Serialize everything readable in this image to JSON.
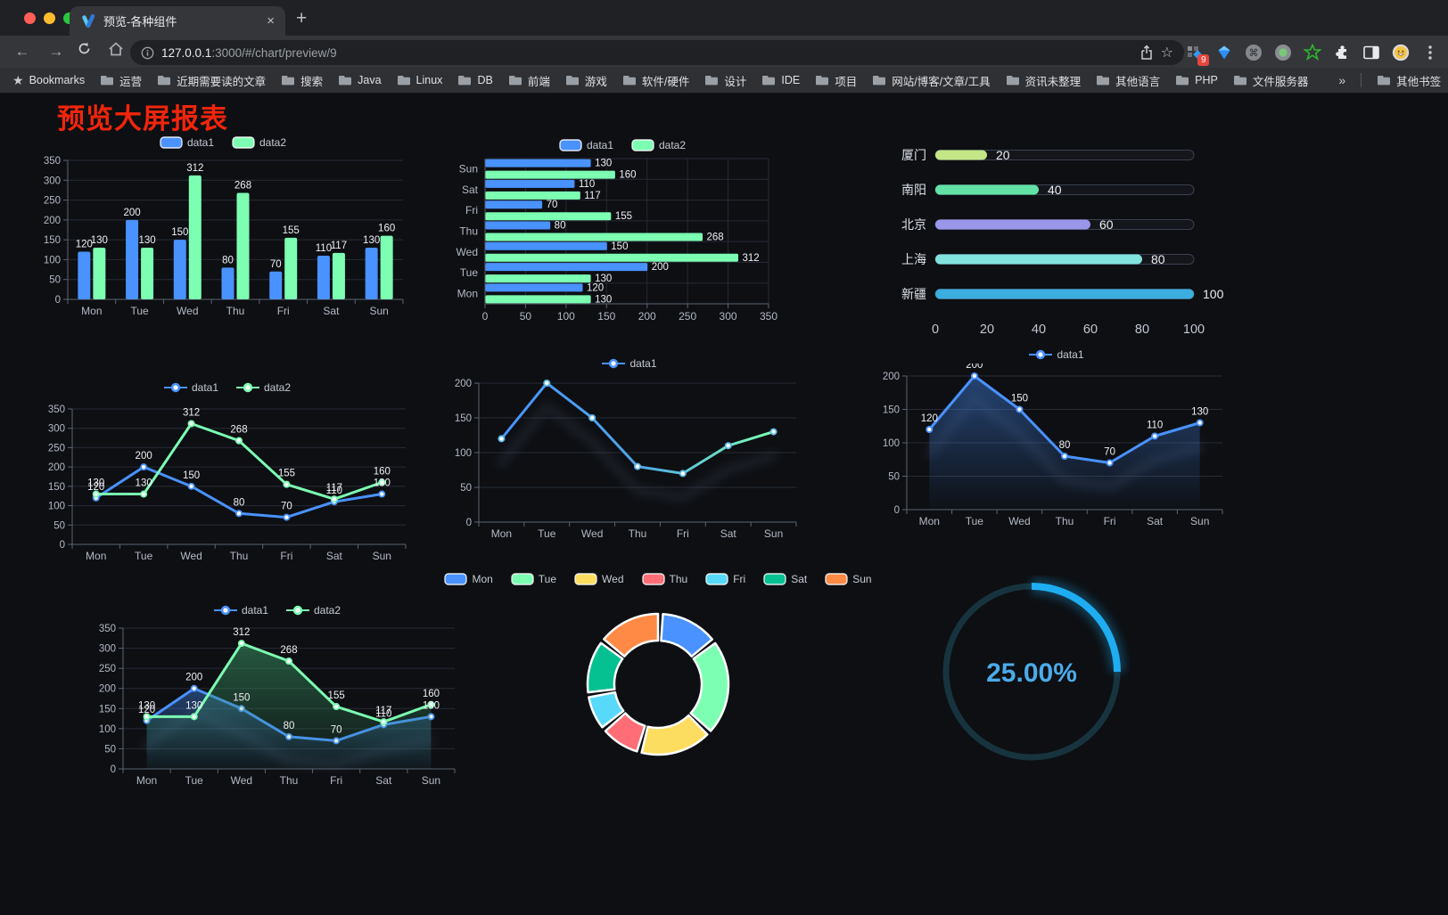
{
  "browser": {
    "tab": {
      "title": "预览-各种组件",
      "close_icon": "×",
      "new_tab_icon": "+"
    },
    "toolbar": {
      "url_host": "127.0.0.1",
      "url_rest": ":3000/#/chart/preview/9",
      "extension_badge": "9"
    },
    "bookmarks_bar": {
      "label": "Bookmarks",
      "items": [
        "运营",
        "近期需要读的文章",
        "搜索",
        "Java",
        "Linux",
        "DB",
        "前端",
        "游戏",
        "软件/硬件",
        "设计",
        "IDE",
        "项目",
        "网站/博客/文章/工具",
        "资讯未整理",
        "其他语言",
        "PHP",
        "文件服务器"
      ],
      "overflow": "»",
      "other": "其他书签"
    }
  },
  "page": {
    "title": "预览大屏报表"
  },
  "colors": {
    "data1_blue": "#4992ff",
    "data2_green": "#7cffb2",
    "traffic_red": "#ff5f57",
    "traffic_yellow": "#febc2e",
    "traffic_green": "#28c840",
    "title_red": "#f1250b",
    "gauge_progress": "#1fadf2"
  },
  "chart_data": [
    {
      "type": "bar",
      "legend_marker": "pill",
      "categories": [
        "Mon",
        "Tue",
        "Wed",
        "Thu",
        "Fri",
        "Sat",
        "Sun"
      ],
      "series": [
        {
          "name": "data1",
          "color": "#4992ff",
          "values": [
            120,
            200,
            150,
            80,
            70,
            110,
            130
          ]
        },
        {
          "name": "data2",
          "color": "#7cffb2",
          "values": [
            130,
            130,
            312,
            268,
            155,
            117,
            160
          ]
        }
      ],
      "ylim": [
        0,
        350
      ],
      "yticks": [
        0,
        50,
        100,
        150,
        200,
        250,
        300,
        350
      ],
      "margins": {
        "l": 36,
        "r": 8,
        "t": 10,
        "b": 22
      }
    },
    {
      "type": "hbar",
      "legend_marker": "pill",
      "categories": [
        "Mon",
        "Tue",
        "Wed",
        "Thu",
        "Fri",
        "Sat",
        "Sun"
      ],
      "series": [
        {
          "name": "data1",
          "color": "#4992ff",
          "values": [
            120,
            200,
            150,
            80,
            70,
            110,
            130
          ]
        },
        {
          "name": "data2",
          "color": "#7cffb2",
          "values": [
            130,
            130,
            312,
            268,
            155,
            117,
            160
          ]
        }
      ],
      "xlim": [
        0,
        350
      ],
      "xticks": [
        0,
        50,
        100,
        150,
        200,
        250,
        300,
        350
      ],
      "margins": {
        "l": 46,
        "r": 36,
        "t": 5,
        "b": 24
      }
    },
    {
      "type": "progress",
      "rows": [
        {
          "label": "厦门",
          "value": 20,
          "color": "#c4e687"
        },
        {
          "label": "南阳",
          "value": 40,
          "color": "#62e2a6"
        },
        {
          "label": "北京",
          "value": 60,
          "color": "#9a96e9"
        },
        {
          "label": "上海",
          "value": 80,
          "color": "#81e2de"
        },
        {
          "label": "新疆",
          "value": 100,
          "color": "#3badde"
        }
      ],
      "xlim": [
        0,
        100
      ],
      "xticks": [
        0,
        20,
        40,
        60,
        80,
        100
      ]
    },
    {
      "type": "line",
      "legend_marker": "dot",
      "categories": [
        "Mon",
        "Tue",
        "Wed",
        "Thu",
        "Fri",
        "Sat",
        "Sun"
      ],
      "series": [
        {
          "name": "data1",
          "color": "#4992ff",
          "values": [
            120,
            200,
            150,
            80,
            70,
            110,
            130
          ],
          "labels": true
        },
        {
          "name": "data2",
          "color": "#7cffb2",
          "values": [
            130,
            130,
            312,
            268,
            155,
            117,
            160
          ],
          "labels": true
        }
      ],
      "ylim": [
        0,
        350
      ],
      "yticks": [
        0,
        50,
        100,
        150,
        200,
        250,
        300,
        350
      ],
      "margins": {
        "l": 36,
        "r": 10,
        "t": 14,
        "b": 26
      }
    },
    {
      "type": "line",
      "legend_marker": "dot",
      "categories": [
        "Mon",
        "Tue",
        "Wed",
        "Thu",
        "Fri",
        "Sat",
        "Sun"
      ],
      "series": [
        {
          "name": "data1",
          "gradient": [
            "#4992ff",
            "#4ea6e8",
            "#7cffb2"
          ],
          "marker_stroke": "#5fb8e8",
          "values": [
            120,
            200,
            150,
            80,
            70,
            110,
            130
          ],
          "labels": false,
          "shadow": true
        }
      ],
      "ylim": [
        0,
        200
      ],
      "yticks": [
        0,
        50,
        100,
        150,
        200
      ],
      "margins": {
        "l": 32,
        "r": 14,
        "t": 12,
        "b": 26
      }
    },
    {
      "type": "line",
      "legend_marker": "dot",
      "categories": [
        "Mon",
        "Tue",
        "Wed",
        "Thu",
        "Fri",
        "Sat",
        "Sun"
      ],
      "series": [
        {
          "name": "data1",
          "color": "#4992ff",
          "values": [
            120,
            200,
            150,
            80,
            70,
            110,
            130
          ],
          "labels": true,
          "shadow": true,
          "area": {
            "from": "rgba(73,146,255,0.40)",
            "to": "rgba(73,146,255,0.02)"
          }
        }
      ],
      "ylim": [
        0,
        200
      ],
      "yticks": [
        0,
        50,
        100,
        150,
        200
      ],
      "margins": {
        "l": 34,
        "r": 16,
        "t": 14,
        "b": 26
      }
    },
    {
      "type": "line",
      "legend_marker": "dot",
      "categories": [
        "Mon",
        "Tue",
        "Wed",
        "Thu",
        "Fri",
        "Sat",
        "Sun"
      ],
      "series": [
        {
          "name": "data1",
          "color": "#4992ff",
          "values": [
            120,
            200,
            150,
            80,
            70,
            110,
            130
          ],
          "labels": true,
          "shadow": true,
          "area": {
            "from": "rgba(73,146,255,0.38)",
            "to": "rgba(73,146,255,0.03)"
          }
        },
        {
          "name": "data2",
          "color": "#7cffb2",
          "values": [
            130,
            130,
            312,
            268,
            155,
            117,
            160
          ],
          "labels": true,
          "area": {
            "from": "rgba(58,150,100,0.55)",
            "to": "rgba(58,150,100,0.04)"
          }
        }
      ],
      "ylim": [
        0,
        350
      ],
      "yticks": [
        0,
        50,
        100,
        150,
        200,
        250,
        300,
        350
      ],
      "margins": {
        "l": 38,
        "r": 12,
        "t": 10,
        "b": 26
      }
    },
    {
      "type": "donut",
      "categories": [
        "Mon",
        "Tue",
        "Wed",
        "Thu",
        "Fri",
        "Sat",
        "Sun"
      ],
      "values": [
        120,
        200,
        150,
        80,
        70,
        110,
        130
      ],
      "colors": [
        "#4992ff",
        "#7cffb2",
        "#fddd60",
        "#ff6e76",
        "#58d9f9",
        "#05c091",
        "#ff8a45"
      ]
    },
    {
      "type": "gauge",
      "value_text": "25.00%",
      "percent": 25,
      "track_color": "#17333e",
      "progress_color": "#1fadf2",
      "text_color": "#4babe9"
    }
  ]
}
